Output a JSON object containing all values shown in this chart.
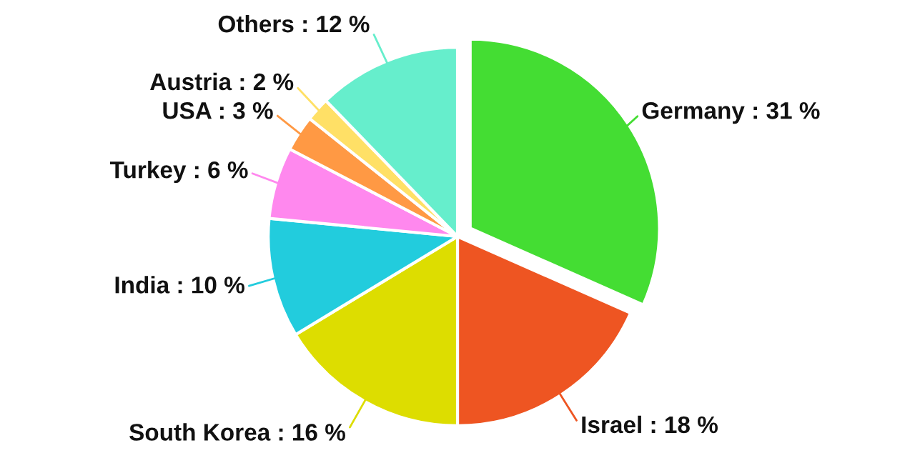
{
  "chart_data": {
    "type": "pie",
    "categories": [
      "Germany",
      "Israel",
      "South Korea",
      "India",
      "Turkey",
      "USA",
      "Austria",
      "Others"
    ],
    "values": [
      31,
      18,
      16,
      10,
      6,
      3,
      2,
      12
    ],
    "value_labels": [
      "31 %",
      "18 %",
      "16 %",
      "10 %",
      "6 %",
      "3 %",
      "2 %",
      "12 %"
    ],
    "colors": [
      "#44dd33",
      "#ee5522",
      "#dddd00",
      "#22ccdd",
      "#ff88ee",
      "#ff9944",
      "#ffe066",
      "#66eecc"
    ],
    "legend": false
  }
}
